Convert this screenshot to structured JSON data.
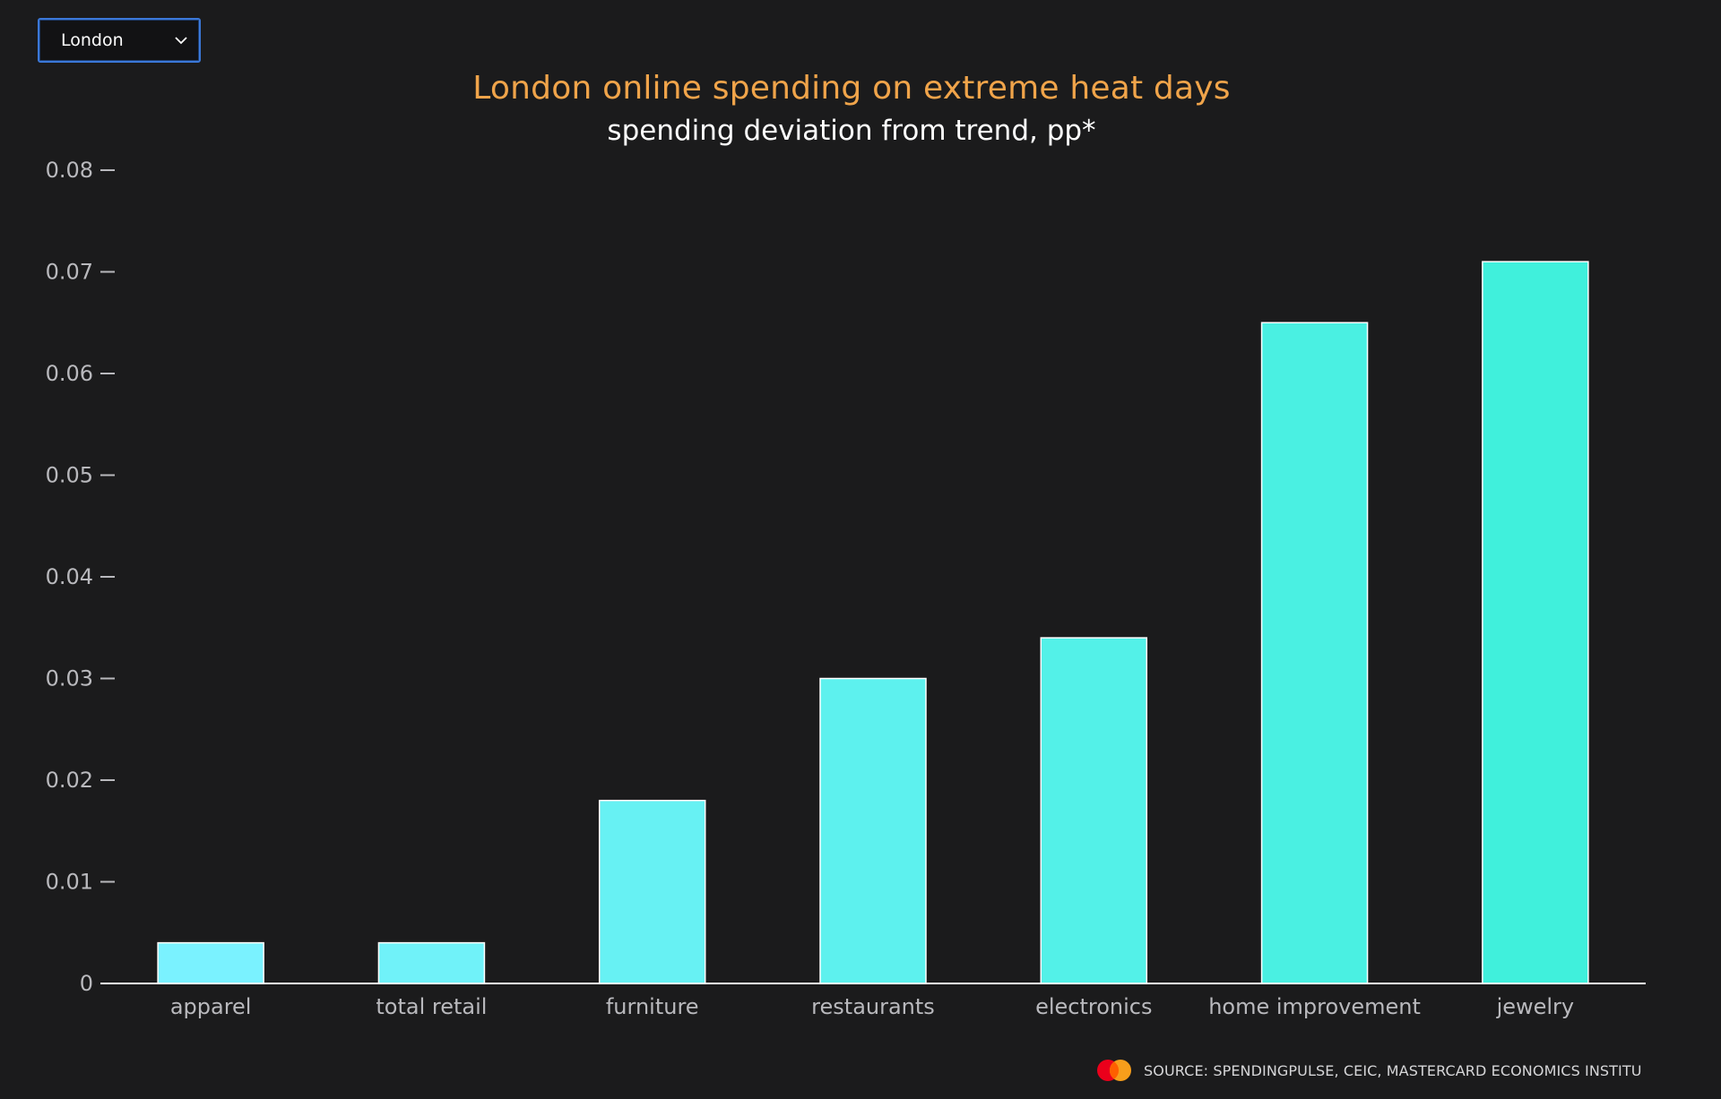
{
  "selector": {
    "value": "London"
  },
  "colors": {
    "background": "#1b1b1c",
    "title": "#f0a44a",
    "bar_start": "#7af2ff",
    "bar_end": "#40f0dc",
    "select_border": "#3b78d8"
  },
  "icons": {
    "dropdown": "chevron-down-icon",
    "logo": "mastercard-logo-icon"
  },
  "source_text": "SOURCE: SPENDINGPULSE, CEIC, MASTERCARD ECONOMICS INSTITU",
  "chart_data": {
    "type": "bar",
    "title": "London online spending on extreme heat days",
    "subtitle": "spending deviation from trend, pp*",
    "categories": [
      "apparel",
      "total retail",
      "furniture",
      "restaurants",
      "electronics",
      "home improvement",
      "jewelry"
    ],
    "values": [
      0.004,
      0.004,
      0.018,
      0.03,
      0.034,
      0.065,
      0.071
    ],
    "ylim": [
      0,
      0.08
    ],
    "yticks": [
      0,
      0.01,
      0.02,
      0.03,
      0.04,
      0.05,
      0.06,
      0.07,
      0.08
    ],
    "ytick_labels": [
      "0",
      "0.01",
      "0.02",
      "0.03",
      "0.04",
      "0.05",
      "0.06",
      "0.07",
      "0.08"
    ],
    "grid": false,
    "legend": "none"
  }
}
